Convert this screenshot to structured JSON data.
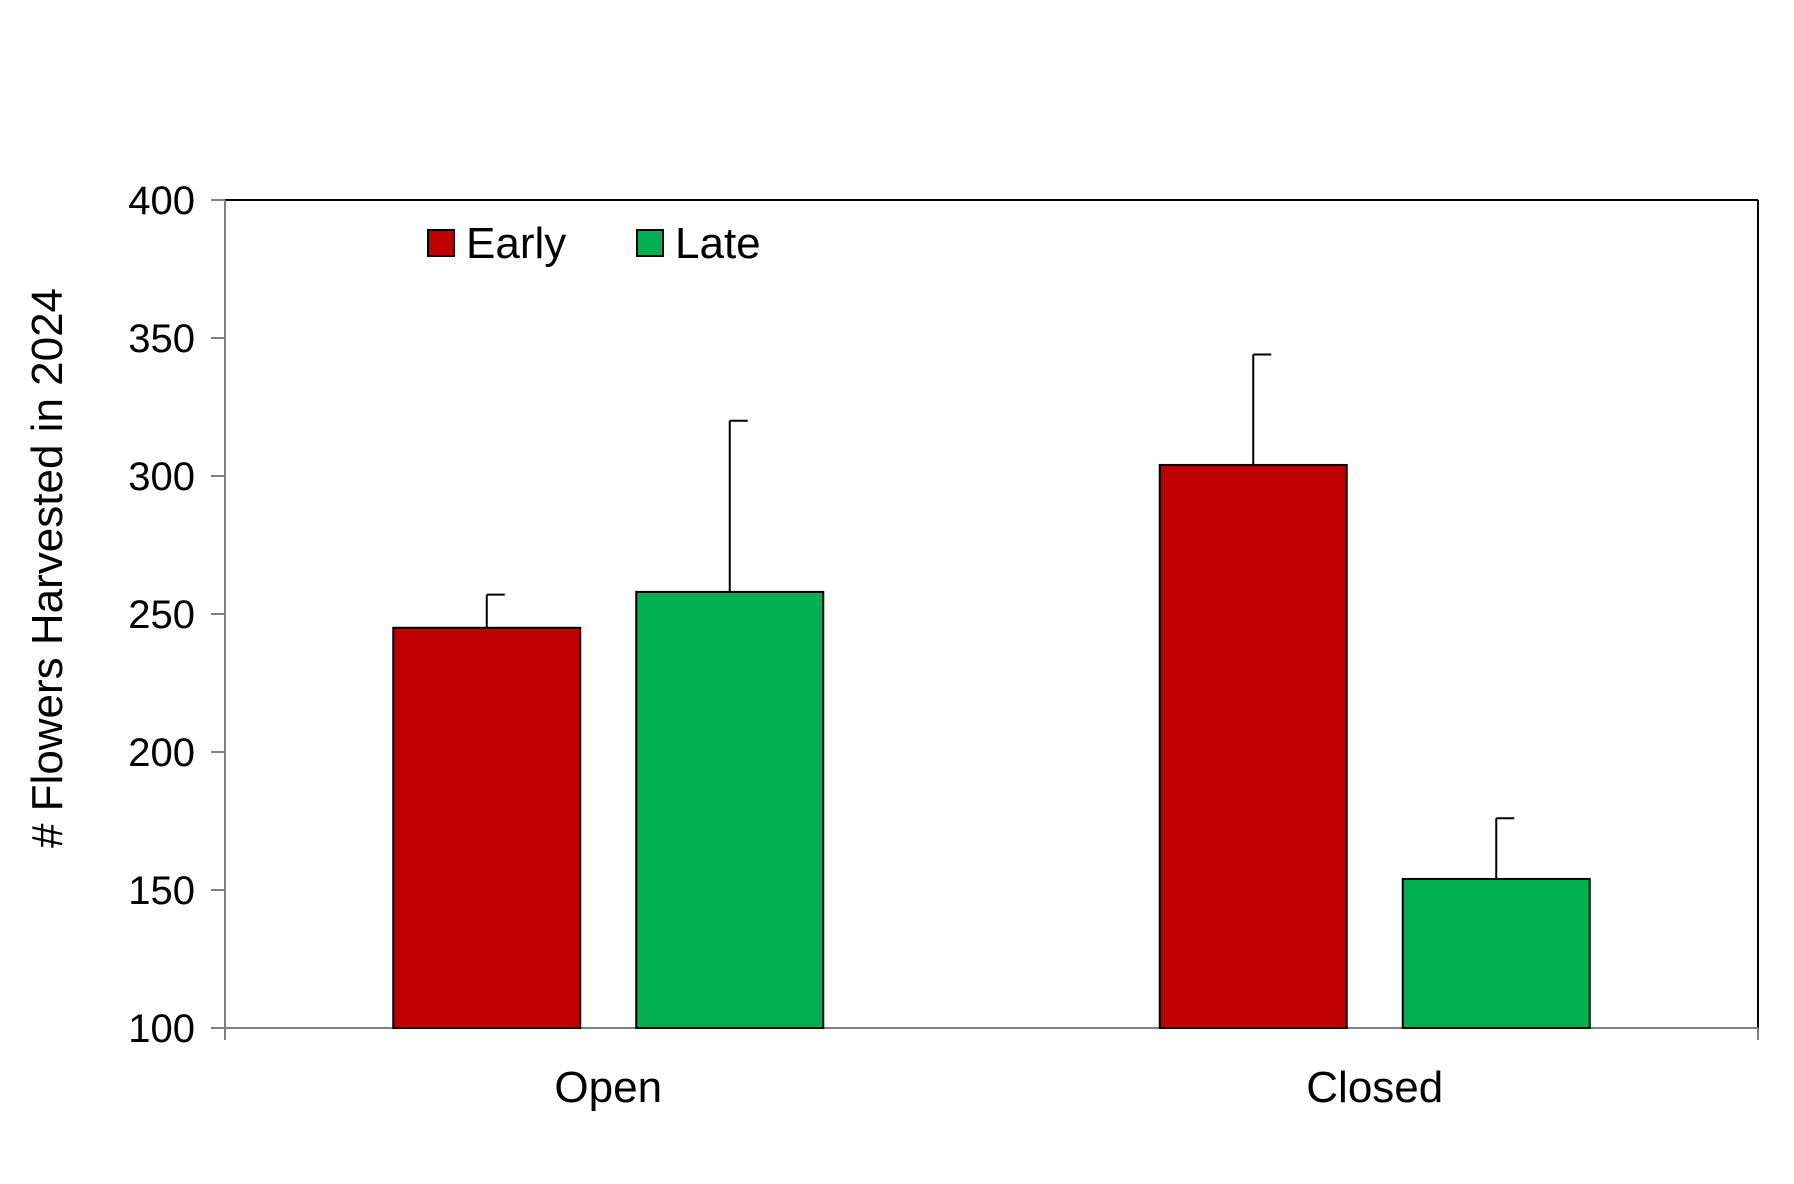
{
  "chart_data": {
    "type": "bar",
    "title": "",
    "xlabel": "",
    "ylabel": "# Flowers Harvested in 2024",
    "categories": [
      "Open",
      "Closed"
    ],
    "ylim": [
      100,
      400
    ],
    "yticks": [
      100,
      150,
      200,
      250,
      300,
      350,
      400
    ],
    "grid": false,
    "legend_position": "top-left",
    "series": [
      {
        "name": "Early",
        "color": "#c00000",
        "values": [
          245,
          304
        ],
        "error": [
          12,
          40
        ]
      },
      {
        "name": "Late",
        "color": "#00b050",
        "values": [
          258,
          154
        ],
        "error": [
          62,
          22
        ]
      }
    ]
  }
}
